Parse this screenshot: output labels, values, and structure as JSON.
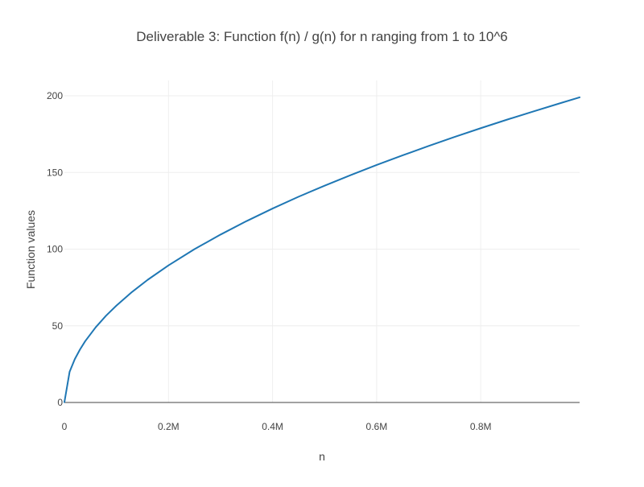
{
  "chart_data": {
    "type": "line",
    "title": "Deliverable 3: Function f(n) / g(n) for n ranging from 1 to 10^6",
    "xlabel": "n",
    "ylabel": "Function values",
    "xlim": [
      0,
      990000
    ],
    "ylim": [
      0,
      210
    ],
    "x_ticks": [
      {
        "value": 0,
        "label": "0"
      },
      {
        "value": 200000,
        "label": "0.2M"
      },
      {
        "value": 400000,
        "label": "0.4M"
      },
      {
        "value": 600000,
        "label": "0.6M"
      },
      {
        "value": 800000,
        "label": "0.8M"
      }
    ],
    "y_ticks": [
      {
        "value": 0,
        "label": "0"
      },
      {
        "value": 50,
        "label": "50"
      },
      {
        "value": 100,
        "label": "100"
      },
      {
        "value": 150,
        "label": "150"
      },
      {
        "value": 200,
        "label": "200"
      }
    ],
    "grid": true,
    "legend": "none",
    "series": [
      {
        "color": "#1f77b4",
        "x": [
          1,
          10000,
          20000,
          30000,
          40000,
          60000,
          80000,
          100000,
          130000,
          160000,
          200000,
          250000,
          300000,
          350000,
          400000,
          450000,
          500000,
          550000,
          600000,
          650000,
          700000,
          750000,
          800000,
          850000,
          900000,
          950000,
          990000
        ],
        "y": [
          0.2,
          20,
          28.3,
          34.6,
          40,
          49,
          56.6,
          63.2,
          72.1,
          80,
          89.4,
          100,
          109.5,
          118.3,
          126.5,
          134.2,
          141.4,
          148.3,
          154.9,
          161.2,
          167.3,
          173.2,
          178.9,
          184.4,
          189.7,
          194.9,
          199
        ]
      }
    ]
  }
}
